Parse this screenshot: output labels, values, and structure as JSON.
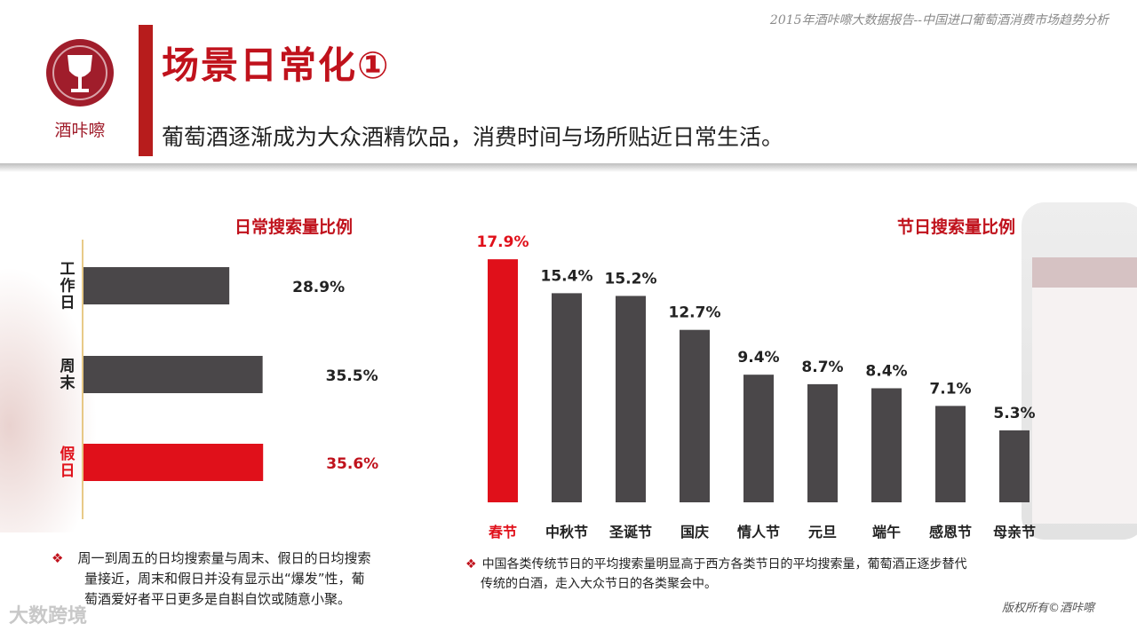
{
  "report_title": "2015年酒咔嚓大数据报告--中国进口葡萄酒消费市场趋势分析",
  "logo_text": "酒咔嚓",
  "page_title": "场景日常化①",
  "page_subtitle": "葡萄酒逐渐成为大众酒精饮品，消费时间与场所贴近日常生活。",
  "colors": {
    "accent": "#e0101a",
    "title_red": "#c0121c",
    "bar_gray": "#4a4749"
  },
  "chart_data": [
    {
      "type": "bar",
      "orientation": "horizontal",
      "title": "日常搜索量比例",
      "categories": [
        "工作日",
        "周末",
        "假日"
      ],
      "values": [
        28.9,
        35.5,
        35.6
      ],
      "value_labels": [
        "28.9%",
        "35.5%",
        "35.6%"
      ],
      "highlight_index": 2
    },
    {
      "type": "bar",
      "orientation": "vertical",
      "title": "节日搜索量比例",
      "categories": [
        "春节",
        "中秋节",
        "圣诞节",
        "国庆",
        "情人节",
        "元旦",
        "端午",
        "感恩节",
        "母亲节"
      ],
      "values": [
        17.9,
        15.4,
        15.2,
        12.7,
        9.4,
        8.7,
        8.4,
        7.1,
        5.3
      ],
      "value_labels": [
        "17.9%",
        "15.4%",
        "15.2%",
        "12.7%",
        "9.4%",
        "8.7%",
        "8.4%",
        "7.1%",
        "5.3%"
      ],
      "highlight_index": 0
    }
  ],
  "notes": {
    "left_symbol": "❖",
    "left_lines": [
      "周一到周五的日均搜索量与周末、假日的日均搜索",
      "量接近，周末和假日并没有显示出“爆发”性，葡",
      "萄酒爱好者平日更多是自斟自饮或随意小聚。"
    ],
    "right_symbol": "❖",
    "right_lines": [
      "中国各类传统节日的平均搜索量明显高于西方各类节日的平均搜索量，葡萄酒正逐步替代",
      "传统的白酒，走入大众节日的各类聚会中。"
    ]
  },
  "copyright": "版权所有©酒咔嚓",
  "watermark": "大数跨境"
}
